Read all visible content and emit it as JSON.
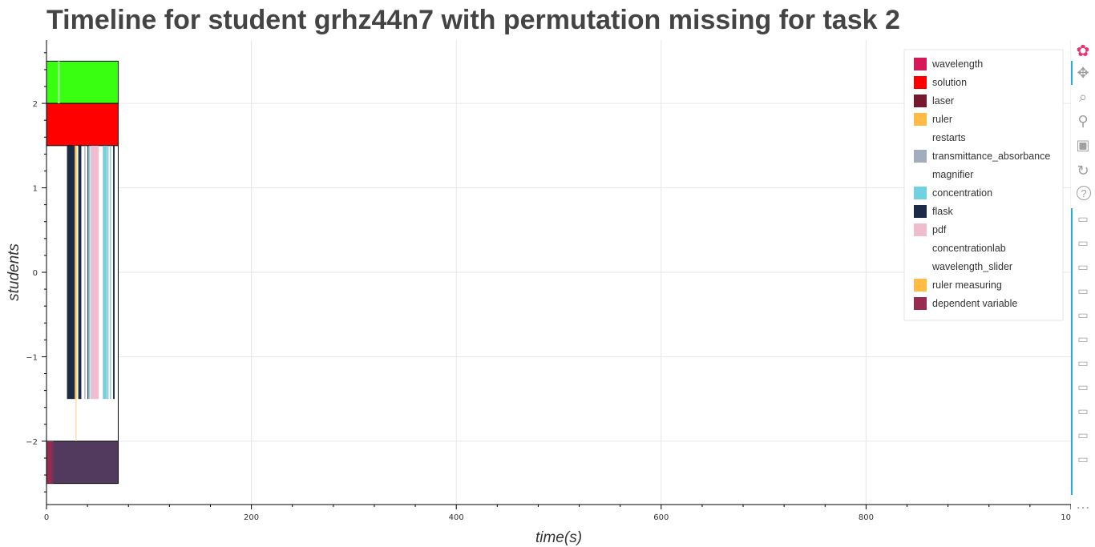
{
  "chart_data": {
    "type": "timeline",
    "title": "Timeline for student grhz44n7 with permutation missing for task 2",
    "xlabel": "time(s)",
    "ylabel": "students",
    "xlim": [
      0,
      1000
    ],
    "ylim": [
      -2.75,
      2.75
    ],
    "x_ticks": [
      0,
      200,
      400,
      600,
      800,
      1000
    ],
    "x_tick_labels": [
      "0",
      "200",
      "400",
      "600",
      "800",
      "1000"
    ],
    "y_ticks": [
      -2,
      -1,
      0,
      1,
      2
    ],
    "y_tick_labels": [
      "−2",
      "−1",
      "0",
      "1",
      "2"
    ],
    "grid": true,
    "legend_position": "top-right",
    "legend": [
      {
        "label": "wavelength",
        "color": "#d6185a"
      },
      {
        "label": "solution",
        "color": "#ff0000"
      },
      {
        "label": "laser",
        "color": "#751a2e"
      },
      {
        "label": "ruler",
        "color": "#ffbb44"
      },
      {
        "label": "restarts",
        "color": "#ffffff"
      },
      {
        "label": "transmittance_absorbance",
        "color": "#a3adbe"
      },
      {
        "label": "magnifier",
        "color": "#ffffff"
      },
      {
        "label": "concentration",
        "color": "#6fd2de"
      },
      {
        "label": "flask",
        "color": "#1c2b45"
      },
      {
        "label": "pdf",
        "color": "#f0bcd0"
      },
      {
        "label": "concentrationlab",
        "color": "#ffffff"
      },
      {
        "label": "wavelength_slider",
        "color": "#ffffff"
      },
      {
        "label": "ruler measuring",
        "color": "#ffbb44"
      },
      {
        "label": "dependent variable",
        "color": "#982c50"
      }
    ],
    "bands": [
      {
        "y0": 2.0,
        "y1": 2.5,
        "x0": 0,
        "x1": 70,
        "color": "#39ff10",
        "outline": true
      },
      {
        "y0": 1.5,
        "y1": 2.0,
        "x0": 0,
        "x1": 70,
        "color": "#ff0000",
        "outline": true
      },
      {
        "y0": -2.5,
        "y1": -2.0,
        "x0": 0,
        "x1": 70,
        "color": "#523a5e",
        "outline": true
      }
    ],
    "segments": [
      {
        "x0": 11,
        "x1": 13,
        "y0": 2.0,
        "y1": 2.5,
        "color": "#8dff7a"
      },
      {
        "x0": 20,
        "x1": 28,
        "y0": -1.5,
        "y1": 1.5,
        "color": "#1c2b45"
      },
      {
        "x0": 27.5,
        "x1": 29.5,
        "y0": -1.5,
        "y1": 1.5,
        "color": "#ffbb44"
      },
      {
        "x0": 29.5,
        "x1": 30.5,
        "y0": -1.5,
        "y1": 1.5,
        "color": "#ffffff"
      },
      {
        "x0": 31,
        "x1": 34,
        "y0": -1.5,
        "y1": 1.5,
        "color": "#1c2b45"
      },
      {
        "x0": 37,
        "x1": 38,
        "y0": -1.5,
        "y1": 1.5,
        "color": "#a3adbe"
      },
      {
        "x0": 40,
        "x1": 41,
        "y0": -1.5,
        "y1": 1.5,
        "color": "#1c2b45"
      },
      {
        "x0": 41.5,
        "x1": 42.5,
        "y0": -1.5,
        "y1": 1.5,
        "color": "#6fd2de"
      },
      {
        "x0": 43,
        "x1": 51,
        "y0": -1.5,
        "y1": 1.5,
        "color": "#f0bcd0"
      },
      {
        "x0": 55,
        "x1": 59,
        "y0": -1.5,
        "y1": 1.5,
        "color": "#6fd2de"
      },
      {
        "x0": 59.5,
        "x1": 60.5,
        "y0": -1.5,
        "y1": 1.5,
        "color": "#a3adbe"
      },
      {
        "x0": 62,
        "x1": 63,
        "y0": -1.5,
        "y1": 1.5,
        "color": "#6fd2de"
      },
      {
        "x0": 65,
        "x1": 66.5,
        "y0": -1.5,
        "y1": 1.5,
        "color": "#1c2b45"
      },
      {
        "x0": 28.5,
        "x1": 29,
        "y0": -2.0,
        "y1": -1.5,
        "color": "#ffcc88"
      },
      {
        "x0": 0,
        "x1": 5,
        "y0": -2.5,
        "y1": -2.0,
        "color": "#982c50"
      },
      {
        "x0": 5,
        "x1": 7,
        "y0": -2.5,
        "y1": -2.0,
        "color": "#6f3556"
      }
    ]
  },
  "toolbar": {
    "tools": [
      {
        "name": "bokeh-logo-icon",
        "glyph": "✿",
        "interactable": false
      },
      {
        "name": "pan-icon",
        "glyph": "✥",
        "interactable": true,
        "active": true
      },
      {
        "name": "box-zoom-icon",
        "glyph": "⌕",
        "interactable": true
      },
      {
        "name": "wheel-zoom-icon",
        "glyph": "⚲",
        "interactable": true
      },
      {
        "name": "save-icon",
        "glyph": "▣",
        "interactable": true
      },
      {
        "name": "reset-icon",
        "glyph": "↻",
        "interactable": true
      },
      {
        "name": "help-icon",
        "glyph": "?",
        "interactable": true
      },
      {
        "name": "hover-icon",
        "glyph": "▭",
        "interactable": true
      },
      {
        "name": "hover-icon",
        "glyph": "▭",
        "interactable": true
      },
      {
        "name": "hover-icon",
        "glyph": "▭",
        "interactable": true
      },
      {
        "name": "hover-icon",
        "glyph": "▭",
        "interactable": true
      },
      {
        "name": "hover-icon",
        "glyph": "▭",
        "interactable": true
      },
      {
        "name": "hover-icon",
        "glyph": "▭",
        "interactable": true
      },
      {
        "name": "hover-icon",
        "glyph": "▭",
        "interactable": true
      },
      {
        "name": "hover-icon",
        "glyph": "▭",
        "interactable": true
      },
      {
        "name": "hover-icon",
        "glyph": "▭",
        "interactable": true
      },
      {
        "name": "hover-icon",
        "glyph": "▭",
        "interactable": true
      },
      {
        "name": "hover-icon",
        "glyph": "▭",
        "interactable": true
      },
      {
        "name": "more-icon",
        "glyph": "…",
        "interactable": true
      }
    ]
  }
}
